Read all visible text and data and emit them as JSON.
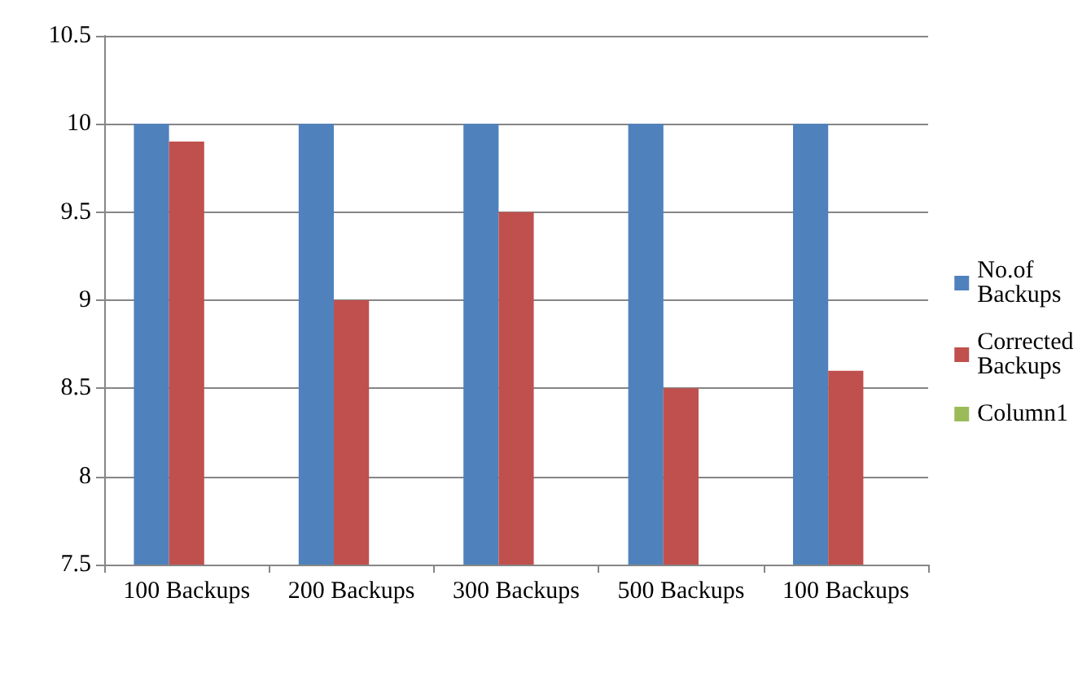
{
  "chart_data": {
    "type": "bar",
    "categories": [
      "100 Backups",
      "200 Backups",
      "300 Backups",
      "500 Backups",
      "100 Backups"
    ],
    "series": [
      {
        "name": "No.of Backups",
        "color": "#4f81bd",
        "values": [
          10,
          10,
          10,
          10,
          10
        ]
      },
      {
        "name": "Corrected Backups",
        "color": "#c0504d",
        "values": [
          9.9,
          9.0,
          9.5,
          8.5,
          8.6
        ]
      },
      {
        "name": "Column1",
        "color": "#9bbb59",
        "values": [
          null,
          null,
          null,
          null,
          null
        ]
      }
    ],
    "ylim": [
      7.5,
      10.5
    ],
    "yticks": [
      7.5,
      8,
      8.5,
      9,
      9.5,
      10,
      10.5
    ],
    "grid": "y",
    "legend": "right"
  }
}
